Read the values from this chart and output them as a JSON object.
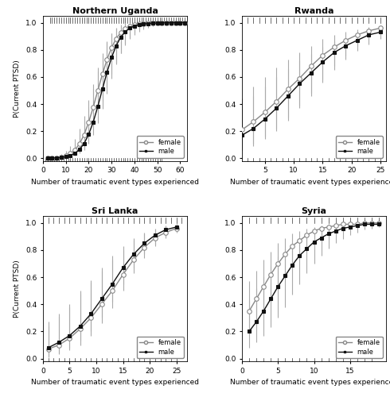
{
  "panels": [
    {
      "title": "Northern Uganda",
      "xlim": [
        0,
        63
      ],
      "ylim": [
        -0.02,
        1.05
      ],
      "xticks": [
        0,
        10,
        20,
        30,
        40,
        50,
        60
      ],
      "yticks": [
        0.0,
        0.2,
        0.4,
        0.6,
        0.8,
        1.0
      ],
      "female_x": [
        2,
        4,
        6,
        8,
        10,
        12,
        14,
        16,
        18,
        20,
        22,
        24,
        26,
        28,
        30,
        32,
        34,
        36,
        38,
        40,
        42,
        44,
        46,
        48,
        50,
        52,
        54,
        56,
        58,
        60,
        62
      ],
      "female_y": [
        0.001,
        0.003,
        0.005,
        0.01,
        0.019,
        0.035,
        0.062,
        0.107,
        0.174,
        0.266,
        0.378,
        0.5,
        0.62,
        0.728,
        0.816,
        0.882,
        0.927,
        0.956,
        0.973,
        0.983,
        0.99,
        0.994,
        0.996,
        0.997,
        0.998,
        0.999,
        0.999,
        0.999,
        1.0,
        1.0,
        1.0
      ],
      "female_lo": [
        0.0,
        0.001,
        0.002,
        0.004,
        0.008,
        0.017,
        0.032,
        0.058,
        0.099,
        0.16,
        0.237,
        0.325,
        0.422,
        0.523,
        0.62,
        0.705,
        0.777,
        0.835,
        0.879,
        0.912,
        0.935,
        0.951,
        0.963,
        0.972,
        0.978,
        0.982,
        0.986,
        0.989,
        0.991,
        0.993,
        0.995
      ],
      "female_hi": [
        0.005,
        0.01,
        0.017,
        0.03,
        0.052,
        0.088,
        0.142,
        0.218,
        0.315,
        0.428,
        0.549,
        0.667,
        0.774,
        0.86,
        0.921,
        0.959,
        0.98,
        0.99,
        0.995,
        0.998,
        0.999,
        0.999,
        1.0,
        1.0,
        1.0,
        1.0,
        1.0,
        1.0,
        1.0,
        1.0,
        1.0
      ],
      "male_x": [
        2,
        4,
        6,
        8,
        10,
        12,
        14,
        16,
        18,
        20,
        22,
        24,
        26,
        28,
        30,
        32,
        34,
        36,
        38,
        40,
        42,
        44,
        46,
        48,
        50,
        52,
        54,
        56,
        58,
        60,
        62
      ],
      "male_y": [
        0.001,
        0.002,
        0.003,
        0.006,
        0.011,
        0.02,
        0.037,
        0.065,
        0.109,
        0.176,
        0.268,
        0.383,
        0.51,
        0.634,
        0.743,
        0.83,
        0.893,
        0.934,
        0.96,
        0.975,
        0.985,
        0.99,
        0.994,
        0.996,
        0.997,
        0.998,
        0.999,
        0.999,
        1.0,
        1.0,
        1.0
      ],
      "male_lo": [
        0.0,
        0.001,
        0.001,
        0.002,
        0.005,
        0.01,
        0.019,
        0.035,
        0.062,
        0.106,
        0.172,
        0.261,
        0.365,
        0.477,
        0.588,
        0.69,
        0.776,
        0.844,
        0.893,
        0.927,
        0.95,
        0.965,
        0.975,
        0.982,
        0.987,
        0.991,
        0.993,
        0.995,
        0.996,
        0.997,
        0.998
      ],
      "male_hi": [
        0.004,
        0.007,
        0.012,
        0.021,
        0.038,
        0.065,
        0.11,
        0.177,
        0.268,
        0.382,
        0.511,
        0.641,
        0.759,
        0.855,
        0.924,
        0.965,
        0.987,
        0.995,
        0.999,
        1.0,
        1.0,
        1.0,
        1.0,
        1.0,
        1.0,
        1.0,
        1.0,
        1.0,
        1.0,
        1.0,
        1.0
      ],
      "rug_top_x": [
        3,
        4,
        5,
        6,
        7,
        8,
        9,
        10,
        11,
        12,
        13,
        14,
        15,
        16,
        17,
        18,
        19,
        20,
        21,
        22,
        23,
        24,
        25,
        26,
        27,
        28,
        29,
        30,
        31,
        32,
        33,
        34,
        35,
        36,
        37,
        38,
        39,
        40,
        41,
        42,
        43,
        44,
        45,
        46,
        47,
        48,
        49,
        50,
        51,
        52,
        53,
        54,
        55,
        56,
        57,
        58,
        59,
        60,
        61,
        62
      ],
      "rug_bottom_x": [
        1,
        2,
        3,
        4,
        5,
        6,
        7,
        8,
        9,
        10,
        11,
        12,
        13,
        14,
        15,
        16,
        17,
        18,
        19,
        20,
        21,
        22,
        23,
        24,
        25,
        26,
        27,
        28,
        29,
        30,
        31,
        32,
        33,
        34,
        35,
        36,
        37,
        38,
        39,
        40,
        41,
        42,
        43,
        44,
        45,
        46,
        47,
        48,
        49,
        50,
        51,
        52
      ]
    },
    {
      "title": "Rwanda",
      "xlim": [
        1,
        26
      ],
      "ylim": [
        -0.02,
        1.05
      ],
      "xticks": [
        5,
        10,
        15,
        20,
        25
      ],
      "yticks": [
        0.0,
        0.2,
        0.4,
        0.6,
        0.8,
        1.0
      ],
      "female_x": [
        1,
        3,
        5,
        7,
        9,
        11,
        13,
        15,
        17,
        19,
        21,
        23,
        25
      ],
      "female_y": [
        0.21,
        0.27,
        0.34,
        0.42,
        0.51,
        0.59,
        0.68,
        0.76,
        0.82,
        0.87,
        0.91,
        0.94,
        0.96
      ],
      "female_lo": [
        0.08,
        0.11,
        0.16,
        0.22,
        0.3,
        0.39,
        0.48,
        0.58,
        0.68,
        0.76,
        0.83,
        0.88,
        0.92
      ],
      "female_hi": [
        0.44,
        0.53,
        0.6,
        0.67,
        0.73,
        0.78,
        0.83,
        0.88,
        0.91,
        0.93,
        0.95,
        0.97,
        0.98
      ],
      "male_x": [
        1,
        3,
        5,
        7,
        9,
        11,
        13,
        15,
        17,
        19,
        21,
        23,
        25
      ],
      "male_y": [
        0.17,
        0.22,
        0.29,
        0.37,
        0.46,
        0.55,
        0.63,
        0.71,
        0.78,
        0.83,
        0.87,
        0.91,
        0.93
      ],
      "male_lo": [
        0.06,
        0.09,
        0.14,
        0.2,
        0.28,
        0.37,
        0.46,
        0.56,
        0.65,
        0.73,
        0.79,
        0.84,
        0.88
      ],
      "male_hi": [
        0.38,
        0.46,
        0.53,
        0.6,
        0.66,
        0.72,
        0.77,
        0.82,
        0.86,
        0.89,
        0.92,
        0.94,
        0.96
      ],
      "rug_top_x": [
        2,
        3,
        4,
        5,
        6,
        7,
        8,
        9,
        10,
        11,
        12,
        13,
        14,
        15,
        16,
        17,
        18,
        19,
        20,
        21,
        22,
        23,
        24,
        25
      ],
      "rug_bottom_x": [
        2,
        3,
        4,
        5,
        6,
        7,
        8,
        9,
        10,
        11,
        12,
        13,
        14,
        15,
        16,
        17,
        18,
        19,
        20,
        21,
        22,
        23,
        24,
        25
      ]
    },
    {
      "title": "Sri Lanka",
      "xlim": [
        0,
        27
      ],
      "ylim": [
        -0.02,
        1.05
      ],
      "xticks": [
        0,
        5,
        10,
        15,
        20,
        25
      ],
      "yticks": [
        0.0,
        0.2,
        0.4,
        0.6,
        0.8,
        1.0
      ],
      "female_x": [
        1,
        3,
        5,
        7,
        9,
        11,
        13,
        15,
        17,
        19,
        21,
        23,
        25
      ],
      "female_y": [
        0.07,
        0.1,
        0.15,
        0.22,
        0.3,
        0.4,
        0.5,
        0.62,
        0.73,
        0.82,
        0.89,
        0.93,
        0.96
      ],
      "female_lo": [
        0.01,
        0.03,
        0.06,
        0.1,
        0.17,
        0.26,
        0.37,
        0.5,
        0.63,
        0.74,
        0.83,
        0.89,
        0.93
      ],
      "female_hi": [
        0.27,
        0.33,
        0.4,
        0.5,
        0.58,
        0.67,
        0.76,
        0.83,
        0.89,
        0.93,
        0.96,
        0.98,
        0.99
      ],
      "male_x": [
        1,
        3,
        5,
        7,
        9,
        11,
        13,
        15,
        17,
        19,
        21,
        23,
        25
      ],
      "male_y": [
        0.08,
        0.12,
        0.17,
        0.24,
        0.33,
        0.44,
        0.55,
        0.67,
        0.77,
        0.85,
        0.91,
        0.95,
        0.97
      ],
      "male_lo": [
        0.02,
        0.04,
        0.08,
        0.13,
        0.2,
        0.3,
        0.42,
        0.55,
        0.67,
        0.77,
        0.84,
        0.9,
        0.94
      ],
      "male_hi": [
        0.24,
        0.31,
        0.38,
        0.48,
        0.56,
        0.65,
        0.73,
        0.8,
        0.87,
        0.92,
        0.95,
        0.97,
        0.99
      ],
      "rug_top_x": [
        1,
        2,
        3,
        4,
        5,
        6,
        7,
        8,
        9,
        10,
        11,
        12,
        13,
        14,
        15,
        16,
        17,
        18,
        19,
        20,
        21,
        22,
        23,
        24,
        25,
        26
      ],
      "rug_bottom_x": [
        1,
        2,
        3,
        4,
        5,
        6,
        7,
        8,
        9,
        10,
        11,
        12,
        13,
        14,
        15,
        16,
        17,
        18,
        19,
        20,
        21,
        22,
        23,
        24,
        25
      ]
    },
    {
      "title": "Syria",
      "xlim": [
        0,
        20
      ],
      "ylim": [
        -0.02,
        1.05
      ],
      "xticks": [
        0,
        5,
        10,
        15
      ],
      "yticks": [
        0.0,
        0.2,
        0.4,
        0.6,
        0.8,
        1.0
      ],
      "female_x": [
        1,
        2,
        3,
        4,
        5,
        6,
        7,
        8,
        9,
        10,
        11,
        12,
        13,
        14,
        15,
        16,
        17,
        18,
        19
      ],
      "female_y": [
        0.35,
        0.44,
        0.53,
        0.62,
        0.7,
        0.77,
        0.83,
        0.87,
        0.91,
        0.94,
        0.96,
        0.97,
        0.98,
        0.99,
        0.99,
        0.99,
        1.0,
        1.0,
        1.0
      ],
      "female_lo": [
        0.18,
        0.25,
        0.33,
        0.42,
        0.51,
        0.6,
        0.68,
        0.75,
        0.81,
        0.86,
        0.89,
        0.92,
        0.94,
        0.96,
        0.97,
        0.98,
        0.98,
        0.99,
        0.99
      ],
      "female_hi": [
        0.57,
        0.65,
        0.73,
        0.79,
        0.85,
        0.89,
        0.92,
        0.94,
        0.96,
        0.97,
        0.98,
        0.99,
        0.99,
        1.0,
        1.0,
        1.0,
        1.0,
        1.0,
        1.0
      ],
      "male_x": [
        1,
        2,
        3,
        4,
        5,
        6,
        7,
        8,
        9,
        10,
        11,
        12,
        13,
        14,
        15,
        16,
        17,
        18,
        19
      ],
      "male_y": [
        0.2,
        0.27,
        0.35,
        0.44,
        0.53,
        0.61,
        0.69,
        0.76,
        0.81,
        0.86,
        0.89,
        0.92,
        0.94,
        0.96,
        0.97,
        0.98,
        0.99,
        0.99,
        0.99
      ],
      "male_lo": [
        0.08,
        0.12,
        0.17,
        0.23,
        0.3,
        0.38,
        0.47,
        0.55,
        0.63,
        0.7,
        0.76,
        0.81,
        0.85,
        0.88,
        0.91,
        0.93,
        0.95,
        0.96,
        0.97
      ],
      "male_hi": [
        0.43,
        0.52,
        0.6,
        0.68,
        0.75,
        0.81,
        0.86,
        0.89,
        0.92,
        0.94,
        0.96,
        0.97,
        0.98,
        0.99,
        0.99,
        0.99,
        1.0,
        1.0,
        1.0
      ],
      "rug_top_x": [
        1,
        2,
        3,
        4,
        5,
        6,
        7,
        8,
        9,
        10,
        11,
        12,
        13,
        14,
        15,
        16,
        17,
        18,
        19
      ],
      "rug_bottom_x": [
        1,
        2,
        3,
        4,
        5,
        6,
        7,
        8,
        9,
        10,
        11,
        12,
        13,
        14,
        15,
        16,
        17,
        18
      ]
    }
  ],
  "female_color": "#888888",
  "male_color": "#111111",
  "line_width": 1.0,
  "marker_size_f": 4,
  "marker_size_m": 4,
  "xlabel": "Number of traumatic event types experienced",
  "ylabel": "P(Current PTSD)"
}
